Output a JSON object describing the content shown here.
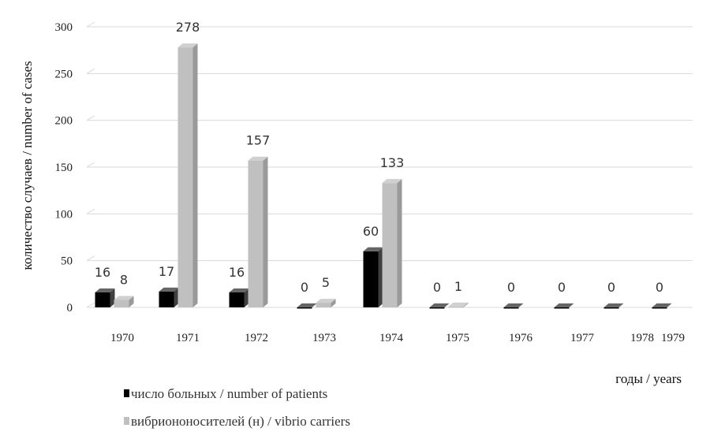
{
  "chart_data": {
    "type": "bar",
    "categories": [
      "1970",
      "1971",
      "1972",
      "1973",
      "1974",
      "1975",
      "1976",
      "1977",
      "1978",
      "1979"
    ],
    "series": [
      {
        "name": "число больных / number of patients",
        "values": [
          16,
          17,
          16,
          0,
          60,
          0,
          0,
          0,
          0,
          0
        ],
        "color": "#000000",
        "labels": [
          "16",
          "17",
          "16",
          "0",
          "60",
          "0",
          "0",
          "0",
          "0",
          "0"
        ]
      },
      {
        "name": "вибриононосителей (н) / vibrio carriers",
        "values": [
          8,
          278,
          157,
          5,
          133,
          1,
          null,
          null,
          null,
          null
        ],
        "color": "#c0c0c0",
        "labels": [
          "8",
          "278",
          "157",
          "5",
          "133",
          "1",
          null,
          null,
          null,
          null
        ]
      }
    ],
    "ylabel": "количество случаев / number of cases",
    "xlabel": "годы / years",
    "ylim": [
      0,
      300
    ],
    "yticks": [
      0,
      50,
      100,
      150,
      200,
      250,
      300
    ],
    "grid": true,
    "legend_position": "bottom-left"
  }
}
